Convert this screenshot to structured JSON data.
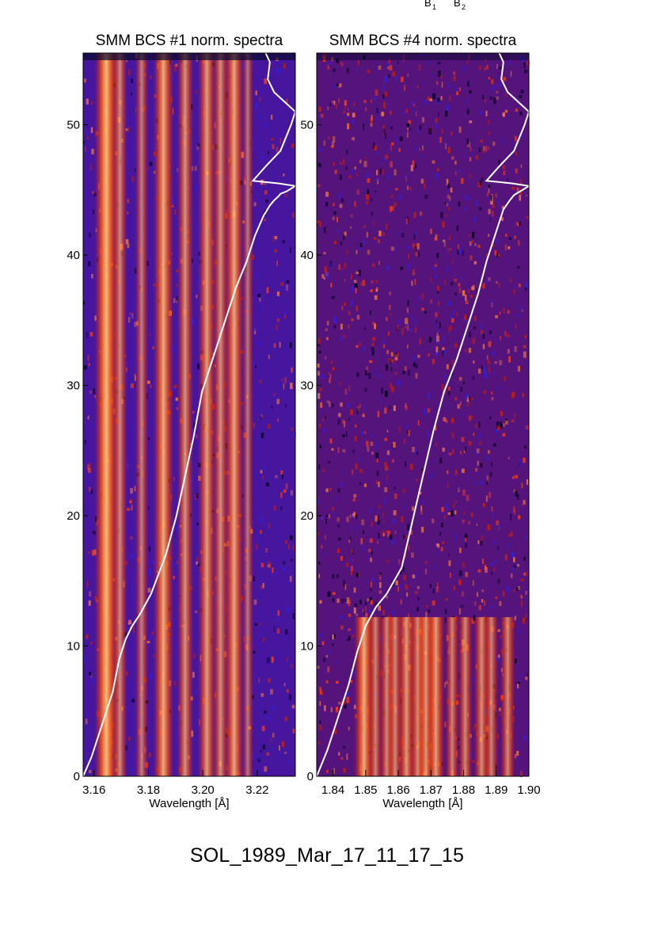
{
  "header_fragment": {
    "b1": "B",
    "b1_sub": "1",
    "b2": "B",
    "b2_sub": "2"
  },
  "caption": "SOL_1989_Mar_17_11_17_15",
  "colors": {
    "curve": "#ffffff",
    "background_blue": "#2218c8",
    "red": "#c81800",
    "bright": "#ffb070"
  },
  "chart_data": [
    {
      "type": "heatmap",
      "title": "SMM BCS #1 norm. spectra",
      "xlabel": "Wavelength [Å]",
      "ylabel": "",
      "xlim": [
        3.156,
        3.234
      ],
      "ylim": [
        0,
        55.5
      ],
      "x_ticks": [
        3.16,
        3.18,
        3.2,
        3.22
      ],
      "x_tick_labels": [
        "3.16",
        "3.18",
        "3.20",
        "3.22"
      ],
      "y_ticks": [
        0,
        10,
        20,
        30,
        40,
        50
      ],
      "y_tick_labels": [
        "0",
        "10",
        "20",
        "30",
        "40",
        "50"
      ],
      "line_centers": [
        3.1645,
        3.1695,
        3.1775,
        3.1855,
        3.1935,
        3.2015,
        3.2065,
        3.2115,
        3.2165
      ],
      "line_strengths": [
        1.0,
        0.45,
        0.35,
        0.8,
        0.55,
        0.65,
        0.5,
        0.75,
        0.25
      ],
      "curve": {
        "x_frac": [
          0.0,
          0.04,
          0.09,
          0.14,
          0.17,
          0.2,
          0.23,
          0.27,
          0.32,
          0.39,
          0.44,
          0.48,
          0.52,
          0.56,
          0.61,
          0.67,
          0.72,
          0.77,
          0.81,
          0.85,
          0.88,
          0.9,
          0.92,
          0.93,
          0.96,
          1.0,
          0.92,
          0.8,
          0.86,
          0.93,
          0.98,
          1.0,
          0.9,
          0.87,
          0.88,
          0.86
        ],
        "y": [
          0,
          1.5,
          4,
          6.5,
          9,
          10.5,
          11.5,
          12.5,
          14,
          17,
          20,
          23,
          26,
          29.5,
          32,
          35,
          37.5,
          39.5,
          41.5,
          43,
          43.8,
          44.2,
          44.5,
          44.7,
          44.9,
          45.3,
          45.5,
          45.7,
          46.8,
          48,
          50,
          51,
          52.5,
          53.5,
          54.8,
          55.5
        ]
      }
    },
    {
      "type": "heatmap",
      "title": "SMM BCS #4 norm. spectra",
      "xlabel": "Wavelength [Å]",
      "ylabel": "",
      "xlim": [
        1.835,
        1.9
      ],
      "ylim": [
        0,
        55.5
      ],
      "x_ticks": [
        1.84,
        1.85,
        1.86,
        1.87,
        1.88,
        1.89,
        1.9
      ],
      "x_tick_labels": [
        "1.84",
        "1.85",
        "1.86",
        "1.87",
        "1.88",
        "1.89",
        "1.90"
      ],
      "y_ticks": [
        0,
        10,
        20,
        30,
        40,
        50
      ],
      "y_tick_labels": [
        "0",
        "10",
        "20",
        "30",
        "40",
        "50"
      ],
      "line_centers": [
        1.8495,
        1.853,
        1.8565,
        1.859,
        1.8625,
        1.866,
        1.8685,
        1.8715,
        1.8765,
        1.8805,
        1.8855,
        1.8885,
        1.8935
      ],
      "line_strengths": [
        0.8,
        0.4,
        0.45,
        0.45,
        0.6,
        0.55,
        0.6,
        0.65,
        0.4,
        0.45,
        0.5,
        0.4,
        0.45
      ],
      "curve": {
        "x_frac": [
          0.0,
          0.05,
          0.1,
          0.15,
          0.19,
          0.23,
          0.28,
          0.33,
          0.4,
          0.45,
          0.5,
          0.55,
          0.6,
          0.66,
          0.71,
          0.76,
          0.8,
          0.84,
          0.88,
          0.91,
          0.93,
          0.96,
          1.0,
          0.92,
          0.8,
          0.86,
          0.93,
          0.98,
          1.0,
          0.9,
          0.87,
          0.88,
          0.86
        ],
        "y": [
          0,
          2,
          4.5,
          7,
          9.5,
          11.5,
          13,
          14,
          16,
          19.5,
          23,
          26.5,
          29.5,
          32,
          34.5,
          37,
          39.5,
          41.5,
          43.5,
          44.2,
          44.6,
          44.9,
          45.3,
          45.5,
          45.7,
          46.8,
          48,
          50,
          51,
          52.5,
          53.5,
          54.8,
          55.5
        ]
      }
    }
  ]
}
